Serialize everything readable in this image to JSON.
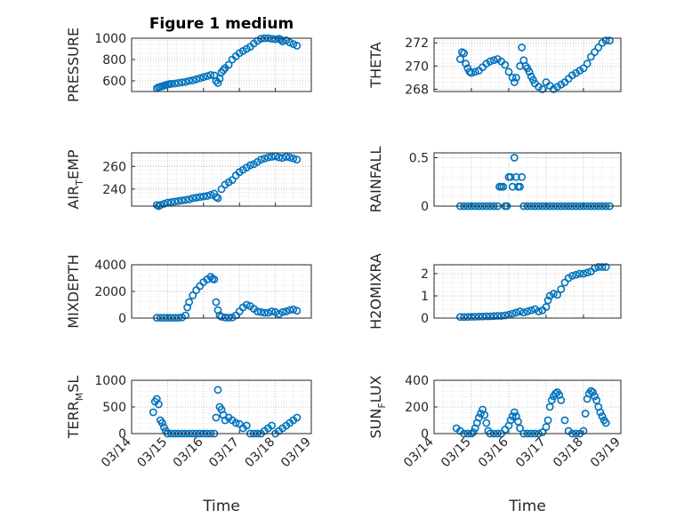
{
  "chart_data": [
    {
      "type": "scatter",
      "panel": "pressure",
      "title": "Figure 1 medium",
      "ylabel": "PRESSURE",
      "xlabel": "",
      "xlim": [
        0,
        5
      ],
      "ylim": [
        500,
        1000
      ],
      "yticks": [
        600,
        800,
        1000
      ],
      "xticks": [
        0,
        1,
        2,
        3,
        4,
        5
      ],
      "xticklabels": [],
      "grid": true,
      "color": "#0072BD",
      "x": [
        0.7,
        0.75,
        0.8,
        0.85,
        0.9,
        0.95,
        1.0,
        1.05,
        1.1,
        1.2,
        1.3,
        1.4,
        1.5,
        1.6,
        1.7,
        1.8,
        1.9,
        2.0,
        2.1,
        2.2,
        2.3,
        2.35,
        2.4,
        2.45,
        2.5,
        2.55,
        2.6,
        2.7,
        2.8,
        2.9,
        3.0,
        3.1,
        3.2,
        3.3,
        3.4,
        3.5,
        3.6,
        3.7,
        3.8,
        3.9,
        4.0,
        4.1,
        4.15,
        4.2,
        4.3,
        4.4,
        4.5,
        4.6
      ],
      "y": [
        530,
        540,
        545,
        550,
        555,
        560,
        565,
        570,
        572,
        575,
        580,
        585,
        590,
        600,
        605,
        615,
        625,
        635,
        645,
        655,
        650,
        600,
        580,
        620,
        680,
        700,
        720,
        750,
        800,
        830,
        860,
        880,
        900,
        920,
        950,
        975,
        995,
        1000,
        1000,
        995,
        990,
        995,
        985,
        970,
        980,
        960,
        945,
        930
      ]
    },
    {
      "type": "scatter",
      "panel": "theta",
      "title": "",
      "ylabel": "THETA",
      "xlabel": "",
      "xlim": [
        0,
        5
      ],
      "ylim": [
        267.8,
        272.4
      ],
      "yticks": [
        268,
        270,
        272
      ],
      "xticks": [
        0,
        1,
        2,
        3,
        4,
        5
      ],
      "xticklabels": [],
      "grid": true,
      "color": "#0072BD",
      "x": [
        0.7,
        0.75,
        0.8,
        0.85,
        0.9,
        0.95,
        1.0,
        1.1,
        1.2,
        1.3,
        1.4,
        1.5,
        1.6,
        1.7,
        1.8,
        1.9,
        2.0,
        2.1,
        2.15,
        2.2,
        2.3,
        2.35,
        2.4,
        2.45,
        2.5,
        2.55,
        2.6,
        2.65,
        2.7,
        2.8,
        2.9,
        3.0,
        3.1,
        3.2,
        3.3,
        3.4,
        3.5,
        3.6,
        3.7,
        3.8,
        3.9,
        4.0,
        4.1,
        4.2,
        4.3,
        4.4,
        4.5,
        4.6,
        4.7
      ],
      "y": [
        270.6,
        271.2,
        271.1,
        270.2,
        269.8,
        269.5,
        269.4,
        269.5,
        269.6,
        269.9,
        270.2,
        270.4,
        270.5,
        270.6,
        270.4,
        270.1,
        269.5,
        269.0,
        268.6,
        269.0,
        270.0,
        271.6,
        270.5,
        270.0,
        269.8,
        269.5,
        269.1,
        268.8,
        268.5,
        268.2,
        268.0,
        268.6,
        268.3,
        268.0,
        268.2,
        268.4,
        268.6,
        268.9,
        269.2,
        269.4,
        269.6,
        269.8,
        270.2,
        270.8,
        271.2,
        271.6,
        272.0,
        272.2,
        272.2
      ]
    },
    {
      "type": "scatter",
      "panel": "air_temp",
      "title": "",
      "ylabel": "AIR_TEMP",
      "ylabel_main": "AIR",
      "ylabel_sub": "T",
      "ylabel_rest": "EMP",
      "xlabel": "",
      "xlim": [
        0,
        5
      ],
      "ylim": [
        225,
        272
      ],
      "yticks": [
        240,
        260
      ],
      "xticks": [
        0,
        1,
        2,
        3,
        4,
        5
      ],
      "xticklabels": [],
      "grid": true,
      "color": "#0072BD",
      "x": [
        0.7,
        0.75,
        0.8,
        0.9,
        1.0,
        1.1,
        1.2,
        1.3,
        1.4,
        1.5,
        1.6,
        1.7,
        1.8,
        1.9,
        2.0,
        2.1,
        2.2,
        2.3,
        2.35,
        2.4,
        2.5,
        2.6,
        2.7,
        2.8,
        2.9,
        3.0,
        3.1,
        3.2,
        3.3,
        3.4,
        3.5,
        3.6,
        3.7,
        3.8,
        3.9,
        4.0,
        4.1,
        4.2,
        4.3,
        4.4,
        4.5,
        4.6
      ],
      "y": [
        226,
        225,
        226,
        227,
        228,
        228.5,
        229,
        229.5,
        230,
        230.5,
        231,
        232,
        232.5,
        233,
        233.5,
        234,
        235,
        236,
        233,
        232,
        240,
        244,
        246,
        248,
        252,
        255,
        257,
        259,
        261,
        262,
        264,
        266,
        267,
        268,
        268.5,
        269,
        268,
        267.5,
        268.5,
        268,
        267,
        266
      ]
    },
    {
      "type": "scatter",
      "panel": "rainfall",
      "title": "",
      "ylabel": "RAINFALL",
      "xlabel": "",
      "xlim": [
        0,
        5
      ],
      "ylim": [
        0,
        0.55
      ],
      "yticks": [
        0,
        0.5
      ],
      "xticks": [
        0,
        1,
        2,
        3,
        4,
        5
      ],
      "xticklabels": [],
      "grid": true,
      "color": "#0072BD",
      "x": [
        0.7,
        0.8,
        0.9,
        1.0,
        1.1,
        1.2,
        1.3,
        1.4,
        1.5,
        1.6,
        1.7,
        1.75,
        1.8,
        1.85,
        1.9,
        1.95,
        2.0,
        2.05,
        2.1,
        2.15,
        2.2,
        2.25,
        2.3,
        2.35,
        2.4,
        2.5,
        2.6,
        2.7,
        2.8,
        2.9,
        3.0,
        3.1,
        3.2,
        3.3,
        3.4,
        3.5,
        3.6,
        3.7,
        3.8,
        3.9,
        4.0,
        4.1,
        4.2,
        4.3,
        4.4,
        4.5,
        4.6,
        4.7
      ],
      "y": [
        0,
        0,
        0,
        0,
        0,
        0,
        0,
        0,
        0,
        0,
        0,
        0.2,
        0.2,
        0.2,
        0,
        0,
        0.3,
        0.3,
        0.2,
        0.5,
        0.3,
        0.2,
        0.2,
        0.3,
        0,
        0,
        0,
        0,
        0,
        0,
        0,
        0,
        0,
        0,
        0,
        0,
        0,
        0,
        0,
        0,
        0,
        0,
        0,
        0,
        0,
        0,
        0,
        0
      ]
    },
    {
      "type": "scatter",
      "panel": "mixdepth",
      "title": "",
      "ylabel": "MIXDEPTH",
      "xlabel": "",
      "xlim": [
        0,
        5
      ],
      "ylim": [
        0,
        4000
      ],
      "yticks": [
        0,
        2000,
        4000
      ],
      "xticks": [
        0,
        1,
        2,
        3,
        4,
        5
      ],
      "xticklabels": [],
      "grid": true,
      "color": "#0072BD",
      "x": [
        0.7,
        0.8,
        0.9,
        1.0,
        1.1,
        1.2,
        1.3,
        1.4,
        1.5,
        1.55,
        1.6,
        1.7,
        1.8,
        1.9,
        2.0,
        2.1,
        2.2,
        2.25,
        2.3,
        2.35,
        2.4,
        2.45,
        2.5,
        2.6,
        2.7,
        2.8,
        2.9,
        3.0,
        3.1,
        3.2,
        3.3,
        3.4,
        3.5,
        3.6,
        3.7,
        3.8,
        3.9,
        4.0,
        4.1,
        4.2,
        4.3,
        4.4,
        4.5,
        4.6
      ],
      "y": [
        20,
        20,
        20,
        20,
        20,
        20,
        20,
        50,
        200,
        800,
        1200,
        1700,
        2100,
        2400,
        2700,
        2900,
        3100,
        2950,
        2900,
        1200,
        600,
        200,
        100,
        50,
        30,
        50,
        200,
        500,
        800,
        1000,
        900,
        700,
        500,
        450,
        400,
        400,
        500,
        450,
        300,
        450,
        500,
        600,
        650,
        550
      ]
    },
    {
      "type": "scatter",
      "panel": "h2omixra",
      "title": "",
      "ylabel": "H2OMIXRA",
      "xlabel": "",
      "xlim": [
        0,
        5
      ],
      "ylim": [
        0,
        2.4
      ],
      "yticks": [
        0,
        1,
        2
      ],
      "xticks": [
        0,
        1,
        2,
        3,
        4,
        5
      ],
      "xticklabels": [],
      "grid": true,
      "color": "#0072BD",
      "x": [
        0.7,
        0.8,
        0.9,
        1.0,
        1.1,
        1.2,
        1.3,
        1.4,
        1.5,
        1.6,
        1.7,
        1.8,
        1.9,
        2.0,
        2.1,
        2.2,
        2.3,
        2.4,
        2.5,
        2.6,
        2.7,
        2.8,
        2.9,
        3.0,
        3.05,
        3.1,
        3.2,
        3.3,
        3.4,
        3.5,
        3.6,
        3.7,
        3.8,
        3.9,
        4.0,
        4.1,
        4.2,
        4.3,
        4.4,
        4.5,
        4.6
      ],
      "y": [
        0.05,
        0.05,
        0.05,
        0.06,
        0.06,
        0.07,
        0.07,
        0.08,
        0.08,
        0.09,
        0.1,
        0.1,
        0.12,
        0.15,
        0.2,
        0.25,
        0.3,
        0.25,
        0.3,
        0.35,
        0.4,
        0.3,
        0.35,
        0.5,
        0.8,
        1.0,
        1.1,
        1.05,
        1.3,
        1.6,
        1.8,
        1.9,
        1.95,
        2.0,
        2.0,
        2.05,
        2.1,
        2.25,
        2.3,
        2.3,
        2.3
      ]
    },
    {
      "type": "scatter",
      "panel": "terr_msl",
      "title": "",
      "ylabel": "TERR_MSL",
      "ylabel_main": "TERR",
      "ylabel_sub": "M",
      "ylabel_rest": "SL",
      "xlabel": "Time",
      "xlim": [
        0,
        5
      ],
      "ylim": [
        0,
        1000
      ],
      "yticks": [
        0,
        500,
        1000
      ],
      "xticks": [
        0,
        1,
        2,
        3,
        4,
        5
      ],
      "xticklabels": [
        "03/14",
        "03/15",
        "03/16",
        "03/17",
        "03/18",
        "03/19"
      ],
      "grid": true,
      "color": "#0072BD",
      "x": [
        0.6,
        0.65,
        0.7,
        0.75,
        0.8,
        0.85,
        0.9,
        0.95,
        1.0,
        1.1,
        1.2,
        1.3,
        1.4,
        1.5,
        1.6,
        1.7,
        1.8,
        1.9,
        2.0,
        2.1,
        2.2,
        2.3,
        2.35,
        2.4,
        2.45,
        2.5,
        2.55,
        2.6,
        2.7,
        2.8,
        2.9,
        3.0,
        3.1,
        3.2,
        3.3,
        3.4,
        3.5,
        3.6,
        3.7,
        3.8,
        3.9,
        4.0,
        4.1,
        4.2,
        4.3,
        4.4,
        4.5,
        4.6
      ],
      "y": [
        400,
        600,
        650,
        550,
        250,
        200,
        120,
        50,
        0,
        0,
        0,
        0,
        0,
        0,
        0,
        0,
        0,
        0,
        0,
        0,
        0,
        0,
        300,
        820,
        500,
        450,
        350,
        250,
        300,
        250,
        200,
        180,
        100,
        150,
        0,
        0,
        0,
        0,
        50,
        100,
        150,
        0,
        50,
        100,
        150,
        200,
        250,
        300
      ]
    },
    {
      "type": "scatter",
      "panel": "sun_flux",
      "title": "",
      "ylabel": "SUN_FLUX",
      "ylabel_main": "SUN",
      "ylabel_sub": "F",
      "ylabel_rest": "LUX",
      "xlabel": "Time",
      "xlim": [
        0,
        5
      ],
      "ylim": [
        0,
        400
      ],
      "yticks": [
        0,
        200,
        400
      ],
      "xticks": [
        0,
        1,
        2,
        3,
        4,
        5
      ],
      "xticklabels": [
        "03/14",
        "03/15",
        "03/16",
        "03/17",
        "03/18",
        "03/19"
      ],
      "grid": true,
      "color": "#0072BD",
      "x": [
        0.6,
        0.7,
        0.8,
        0.9,
        1.0,
        1.05,
        1.1,
        1.15,
        1.2,
        1.25,
        1.3,
        1.35,
        1.4,
        1.45,
        1.5,
        1.6,
        1.7,
        1.8,
        1.9,
        2.0,
        2.05,
        2.1,
        2.15,
        2.2,
        2.25,
        2.3,
        2.4,
        2.5,
        2.6,
        2.7,
        2.8,
        2.9,
        3.0,
        3.05,
        3.1,
        3.15,
        3.2,
        3.25,
        3.3,
        3.35,
        3.4,
        3.5,
        3.6,
        3.7,
        3.8,
        3.9,
        4.0,
        4.05,
        4.1,
        4.15,
        4.2,
        4.25,
        4.3,
        4.35,
        4.4,
        4.45,
        4.5,
        4.55,
        4.6
      ],
      "y": [
        40,
        20,
        0,
        0,
        0,
        10,
        40,
        80,
        120,
        150,
        180,
        140,
        80,
        20,
        0,
        0,
        0,
        0,
        30,
        60,
        100,
        130,
        160,
        130,
        90,
        40,
        0,
        0,
        0,
        0,
        0,
        10,
        50,
        100,
        200,
        250,
        280,
        300,
        310,
        290,
        250,
        100,
        20,
        0,
        0,
        0,
        20,
        150,
        260,
        300,
        320,
        310,
        280,
        250,
        200,
        160,
        130,
        100,
        80
      ]
    }
  ]
}
